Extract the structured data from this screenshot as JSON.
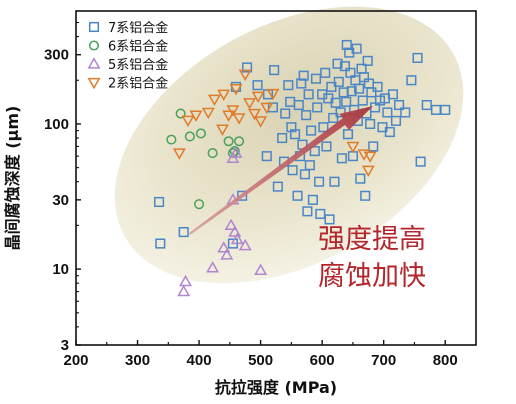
{
  "chart_data": {
    "type": "scatter",
    "xlabel": "抗拉强度 (MPa)",
    "ylabel": "晶间腐蚀深度 (μm)",
    "xlim": [
      200,
      850
    ],
    "ylim": [
      3,
      600
    ],
    "x_scale": "linear",
    "y_scale": "log",
    "x_ticks": [
      200,
      300,
      400,
      500,
      600,
      700,
      800
    ],
    "y_ticks": [
      3,
      10,
      30,
      100,
      300
    ],
    "legend_position": "top-left",
    "annotation_lines": [
      "强度提高",
      "腐蚀加快"
    ],
    "colors": {
      "7系铝合金": "#4a86c5",
      "6系铝合金": "#4aa05a",
      "5系铝合金": "#b184d0",
      "2系铝合金": "#e07b2a",
      "arrow": "#b8464c",
      "annotation": "#b3262c"
    },
    "series": [
      {
        "name": "7系铝合金",
        "marker": "square",
        "points": [
          [
            335,
            29
          ],
          [
            337,
            15
          ],
          [
            375,
            18
          ],
          [
            455,
            15
          ],
          [
            470,
            32
          ],
          [
            460,
            180
          ],
          [
            478,
            245
          ],
          [
            495,
            185
          ],
          [
            510,
            60
          ],
          [
            512,
            160
          ],
          [
            520,
            130
          ],
          [
            522,
            235
          ],
          [
            528,
            37
          ],
          [
            535,
            80
          ],
          [
            538,
            55
          ],
          [
            540,
            118
          ],
          [
            545,
            185
          ],
          [
            548,
            142
          ],
          [
            550,
            95
          ],
          [
            552,
            48
          ],
          [
            556,
            85
          ],
          [
            560,
            32
          ],
          [
            562,
            135
          ],
          [
            564,
            60
          ],
          [
            566,
            190
          ],
          [
            568,
            72
          ],
          [
            570,
            215
          ],
          [
            572,
            45
          ],
          [
            574,
            115
          ],
          [
            576,
            25
          ],
          [
            578,
            160
          ],
          [
            580,
            52
          ],
          [
            582,
            90
          ],
          [
            585,
            30
          ],
          [
            588,
            65
          ],
          [
            590,
            205
          ],
          [
            592,
            130
          ],
          [
            595,
            40
          ],
          [
            597,
            24
          ],
          [
            600,
            160
          ],
          [
            602,
            95
          ],
          [
            605,
            225
          ],
          [
            607,
            70
          ],
          [
            610,
            150
          ],
          [
            612,
            22
          ],
          [
            615,
            180
          ],
          [
            618,
            110
          ],
          [
            620,
            40
          ],
          [
            622,
            140
          ],
          [
            625,
            260
          ],
          [
            627,
            195
          ],
          [
            630,
            120
          ],
          [
            632,
            58
          ],
          [
            635,
            165
          ],
          [
            637,
            250
          ],
          [
            639,
            142
          ],
          [
            640,
            350
          ],
          [
            642,
            85
          ],
          [
            644,
            310
          ],
          [
            646,
            225
          ],
          [
            648,
            168
          ],
          [
            650,
            60
          ],
          [
            652,
            125
          ],
          [
            654,
            200
          ],
          [
            656,
            330
          ],
          [
            658,
            105
          ],
          [
            660,
            175
          ],
          [
            662,
            42
          ],
          [
            664,
            240
          ],
          [
            666,
            145
          ],
          [
            668,
            210
          ],
          [
            670,
            32
          ],
          [
            672,
            118
          ],
          [
            674,
            272
          ],
          [
            676,
            190
          ],
          [
            678,
            100
          ],
          [
            680,
            165
          ],
          [
            683,
            70
          ],
          [
            686,
            130
          ],
          [
            690,
            180
          ],
          [
            694,
            145
          ],
          [
            698,
            95
          ],
          [
            702,
            150
          ],
          [
            706,
            120
          ],
          [
            710,
            88
          ],
          [
            715,
            160
          ],
          [
            720,
            105
          ],
          [
            725,
            135
          ],
          [
            735,
            120
          ],
          [
            745,
            200
          ],
          [
            755,
            285
          ],
          [
            760,
            55
          ],
          [
            770,
            135
          ],
          [
            785,
            125
          ],
          [
            800,
            125
          ]
        ]
      },
      {
        "name": "6系铝合金",
        "marker": "circle",
        "points": [
          [
            355,
            78
          ],
          [
            370,
            118
          ],
          [
            385,
            82
          ],
          [
            400,
            28
          ],
          [
            403,
            86
          ],
          [
            422,
            63
          ],
          [
            448,
            76
          ],
          [
            455,
            63
          ],
          [
            458,
            65
          ],
          [
            465,
            76
          ]
        ]
      },
      {
        "name": "5系铝合金",
        "marker": "triangle-up",
        "points": [
          [
            375,
            7
          ],
          [
            378,
            8.2
          ],
          [
            422,
            10.2
          ],
          [
            440,
            14
          ],
          [
            445,
            12.5
          ],
          [
            452,
            20
          ],
          [
            455,
            30
          ],
          [
            458,
            18
          ],
          [
            462,
            16
          ],
          [
            475,
            14.5
          ],
          [
            500,
            9.8
          ],
          [
            455,
            58
          ],
          [
            460,
            63
          ]
        ]
      },
      {
        "name": "2系铝合金",
        "marker": "triangle-down",
        "points": [
          [
            368,
            63
          ],
          [
            382,
            106
          ],
          [
            395,
            115
          ],
          [
            415,
            120
          ],
          [
            425,
            148
          ],
          [
            438,
            92
          ],
          [
            440,
            160
          ],
          [
            448,
            115
          ],
          [
            455,
            125
          ],
          [
            460,
            175
          ],
          [
            465,
            110
          ],
          [
            475,
            220
          ],
          [
            482,
            140
          ],
          [
            490,
            118
          ],
          [
            496,
            155
          ],
          [
            500,
            105
          ],
          [
            510,
            130
          ],
          [
            520,
            162
          ],
          [
            650,
            70
          ],
          [
            668,
            62
          ],
          [
            675,
            48
          ],
          [
            678,
            60
          ]
        ]
      }
    ]
  }
}
